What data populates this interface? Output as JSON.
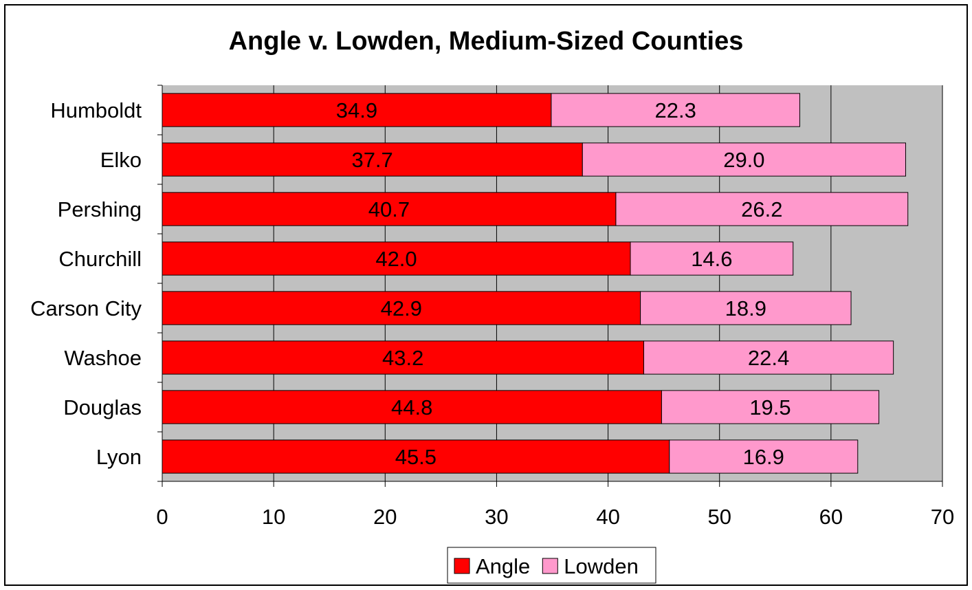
{
  "chart_data": {
    "type": "bar",
    "orientation": "horizontal",
    "stacked": true,
    "title": "Angle v. Lowden, Medium-Sized Counties",
    "categories": [
      "Humboldt",
      "Elko",
      "Pershing",
      "Churchill",
      "Carson City",
      "Washoe",
      "Douglas",
      "Lyon"
    ],
    "series": [
      {
        "name": "Angle",
        "color": "#ff0000",
        "values": [
          34.9,
          37.7,
          40.7,
          42.0,
          42.9,
          43.2,
          44.8,
          45.5
        ]
      },
      {
        "name": "Lowden",
        "color": "#ff99cc",
        "values": [
          22.3,
          29.0,
          26.2,
          14.6,
          18.9,
          22.4,
          19.5,
          16.9
        ]
      }
    ],
    "xlim": [
      0,
      70
    ],
    "xticks": [
      0,
      10,
      20,
      30,
      40,
      50,
      60,
      70
    ],
    "grid": true,
    "plot_background": "#c0c0c0",
    "legend_position": "bottom"
  }
}
